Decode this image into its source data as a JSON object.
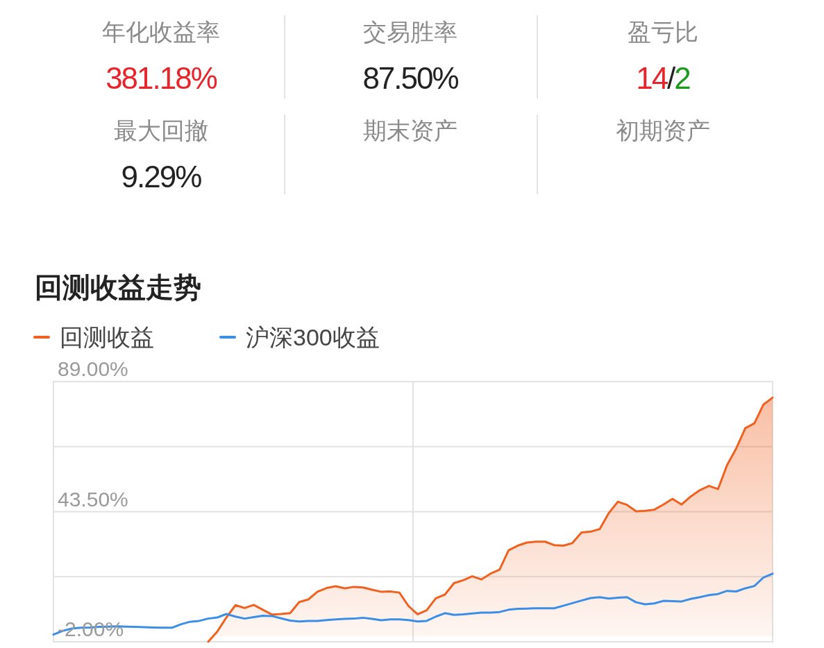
{
  "chart_data": [
    {
      "type": "other",
      "annotations": [
        "年化收益率",
        "381.18%",
        "交易胜率",
        "87.50%",
        "盈亏比",
        "14/2",
        "最大回撤",
        "9.29%",
        "期末资产",
        "初期资产"
      ]
    },
    {
      "type": "line",
      "title": "回测收益走势",
      "legend": "top left",
      "grid": true,
      "marker": "none",
      "line_style": "solid",
      "categories": [
        null,
        null,
        null,
        null,
        null,
        null,
        null,
        null,
        null,
        null,
        null,
        null,
        null,
        null,
        null,
        null,
        null,
        null,
        null,
        null,
        null,
        null,
        null,
        null,
        null,
        null,
        null,
        null,
        null,
        null,
        null,
        null,
        null,
        null,
        null,
        null,
        null,
        null,
        null,
        null,
        null,
        null,
        null,
        null,
        null,
        null,
        null,
        null,
        null,
        null,
        null,
        null,
        null,
        null,
        null,
        null,
        null,
        null,
        null,
        null,
        null,
        null,
        null,
        null,
        null,
        null,
        null,
        null,
        null,
        null,
        null,
        null,
        null,
        null,
        null,
        null,
        null,
        null,
        null,
        null
      ],
      "ylim": [
        -2,
        89
      ],
      "yticks": [
        {
          "value": -2,
          "label": "-2.00%"
        },
        {
          "value": 20.75,
          "label": null
        },
        {
          "value": 43.5,
          "label": "43.50%"
        },
        {
          "value": 66.25,
          "label": null
        },
        {
          "value": 89,
          "label": "89.00%"
        }
      ],
      "series": [
        {
          "name": "回测收益",
          "type": "area",
          "color": "#f0601e",
          "values": [
            null,
            null,
            null,
            null,
            null,
            null,
            null,
            null,
            null,
            null,
            null,
            null,
            null,
            null,
            null,
            null,
            null,
            -2,
            1.6,
            6.5,
            10.8,
            9.8,
            10.9,
            9.2,
            7.5,
            7.7,
            8.0,
            11.9,
            12.8,
            15.5,
            16.8,
            17.4,
            16.7,
            17.2,
            17.0,
            16.2,
            15.5,
            15.6,
            15.2,
            10.5,
            7.6,
            9.0,
            13.2,
            14.5,
            18.5,
            19.5,
            20.9,
            19.8,
            21.8,
            23.2,
            30.0,
            31.6,
            32.7,
            33.0,
            33.0,
            31.8,
            31.6,
            32.5,
            36.2,
            36.5,
            37.4,
            43.0,
            47.0,
            45.9,
            43.6,
            43.8,
            44.2,
            46.0,
            48.0,
            46.0,
            48.8,
            51.0,
            52.5,
            51.4,
            59.8,
            65.6,
            72.7,
            74.4,
            81.0,
            83.4
          ]
        },
        {
          "name": "沪深300收益",
          "type": "line",
          "color": "#3a8ee6",
          "values": [
            0.5,
            1.8,
            2.6,
            2.9,
            3.0,
            3.2,
            3.3,
            3.4,
            3.3,
            3.2,
            3.1,
            3.0,
            2.9,
            2.9,
            4.1,
            5.0,
            5.3,
            6.1,
            6.5,
            7.7,
            6.8,
            6.1,
            6.6,
            7.1,
            7.0,
            6.2,
            5.4,
            5.1,
            5.3,
            5.3,
            5.6,
            5.8,
            6.0,
            6.1,
            6.4,
            6.0,
            5.5,
            5.8,
            5.8,
            5.6,
            5.1,
            5.3,
            6.8,
            8.0,
            7.4,
            7.6,
            7.9,
            8.2,
            8.2,
            8.4,
            9.2,
            9.5,
            9.6,
            9.7,
            9.7,
            9.7,
            10.6,
            11.5,
            12.4,
            13.3,
            13.6,
            13.1,
            13.4,
            13.6,
            11.8,
            11.1,
            11.4,
            12.3,
            12.2,
            12.1,
            13.0,
            13.6,
            14.3,
            14.7,
            15.8,
            15.6,
            16.7,
            17.5,
            20.5,
            21.8
          ]
        }
      ]
    }
  ]
}
